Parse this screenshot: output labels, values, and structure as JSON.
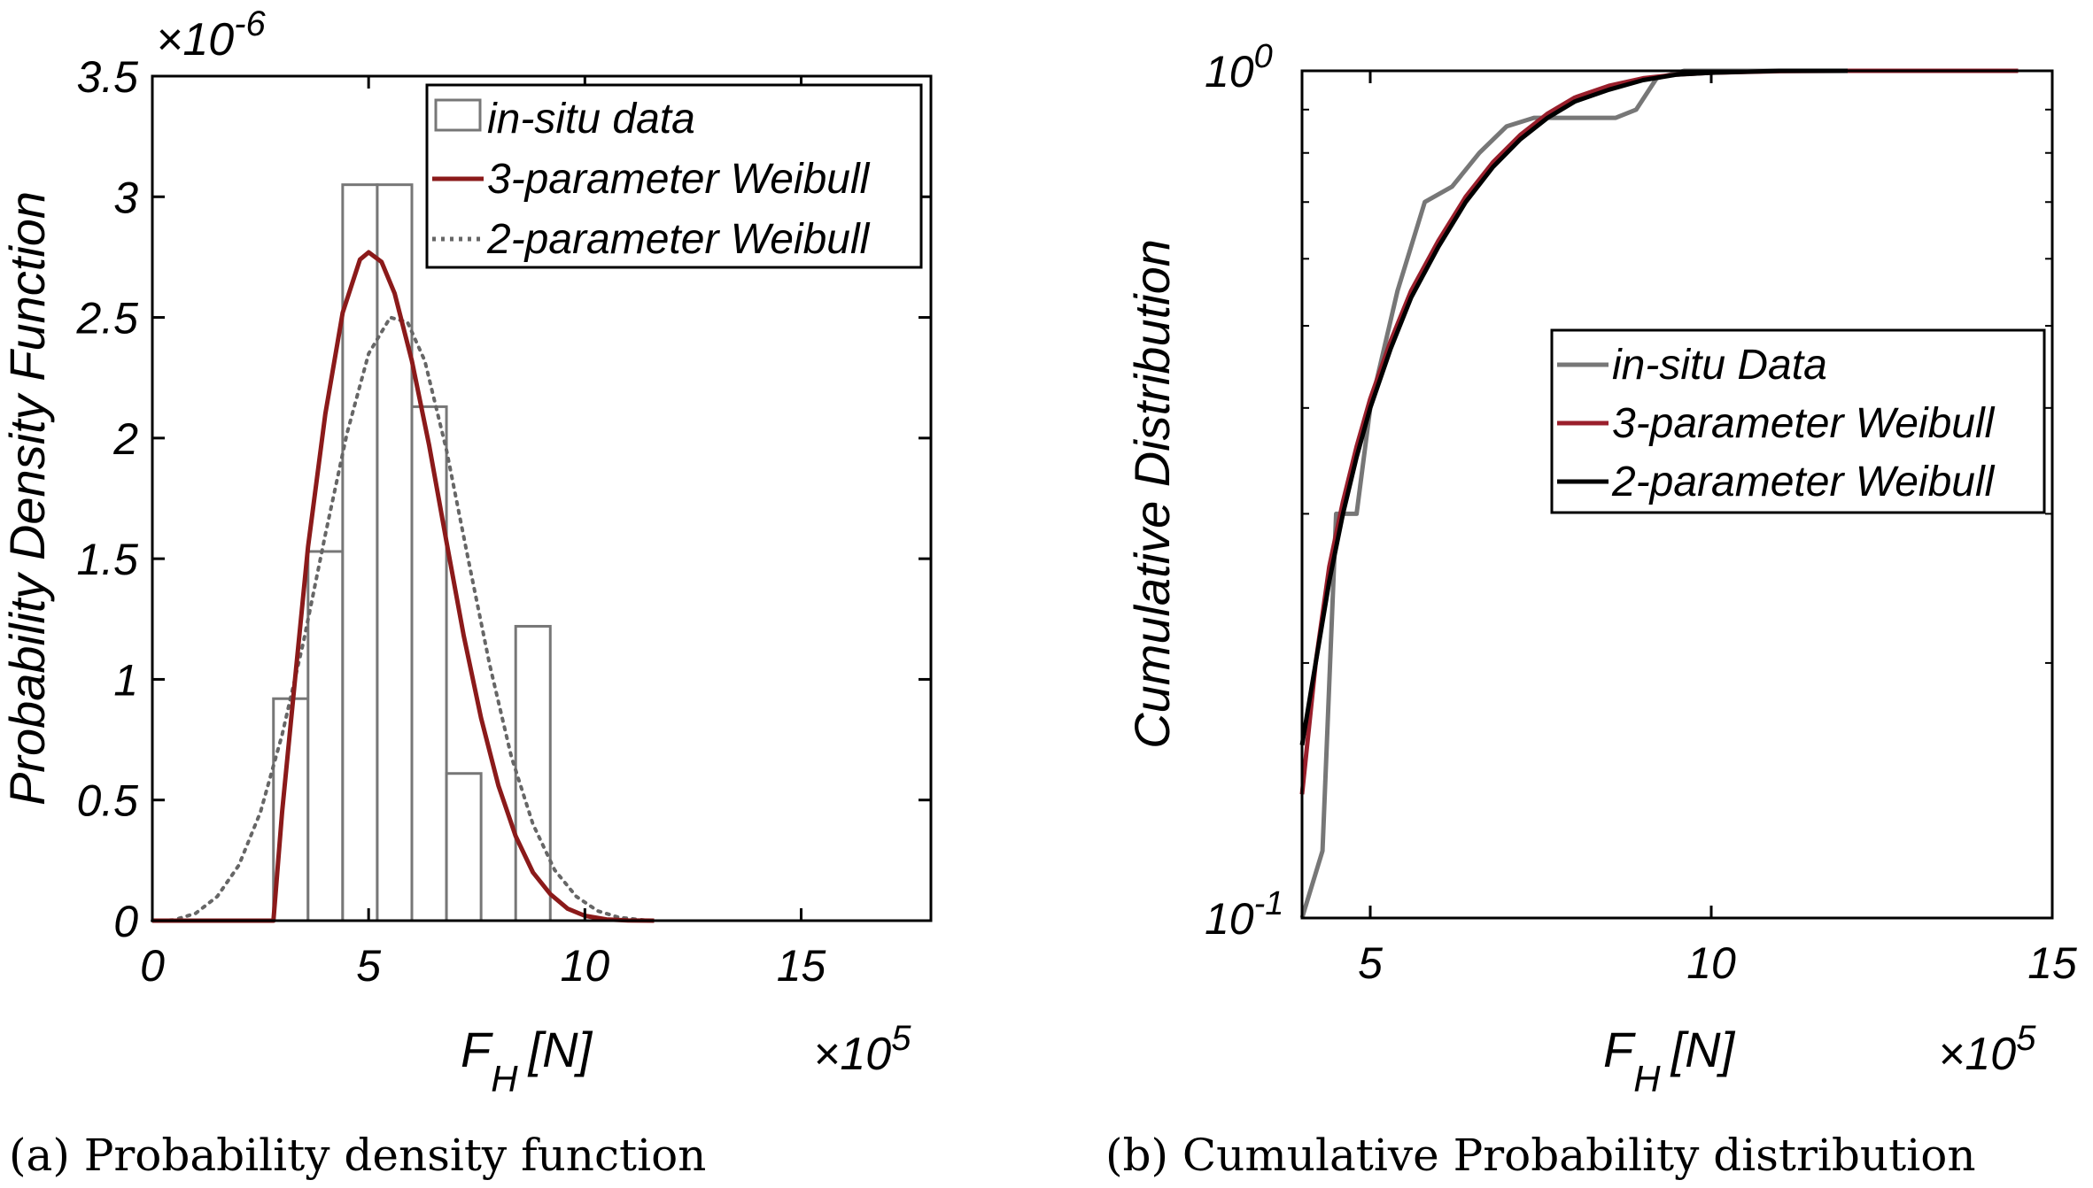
{
  "chart_data": [
    {
      "type": "bar",
      "panel": "a",
      "caption": "(a) Probability density function",
      "title": "",
      "xlabel": "F",
      "xlabel_sub": "H",
      "xlabel_unit": "[N]",
      "ylabel": "Probability Density Function",
      "x_multiplier": "×10",
      "x_multiplier_exp": "5",
      "y_multiplier": "×10",
      "y_multiplier_exp": "-6",
      "xlim": [
        0,
        18
      ],
      "ylim": [
        0,
        3.5
      ],
      "xticks": [
        0,
        5,
        10,
        15
      ],
      "xtick_labels": [
        "0",
        "5",
        "10",
        "15"
      ],
      "yticks": [
        0,
        0.5,
        1,
        1.5,
        2,
        2.5,
        3,
        3.5
      ],
      "ytick_labels": [
        "0",
        "0.5",
        "1",
        "1.5",
        "2",
        "2.5",
        "3",
        "3.5"
      ],
      "histogram": {
        "name": "in-situ data",
        "bin_edges": [
          2.8,
          3.6,
          4.4,
          5.2,
          6.0,
          6.8,
          7.6,
          8.4,
          9.2
        ],
        "values": [
          0.92,
          1.53,
          3.05,
          3.05,
          2.13,
          0.61,
          0,
          1.22
        ]
      },
      "series": [
        {
          "name": "3-parameter Weibull",
          "style": "solid",
          "color": "#8b1a1a",
          "x": [
            0,
            2.0,
            2.8,
            3.0,
            3.3,
            3.6,
            4.0,
            4.4,
            4.8,
            5.0,
            5.3,
            5.6,
            6.0,
            6.4,
            6.8,
            7.2,
            7.6,
            8.0,
            8.4,
            8.8,
            9.2,
            9.6,
            10.0,
            10.5,
            11.0,
            11.6
          ],
          "values": [
            0,
            0,
            0,
            0.45,
            1.0,
            1.55,
            2.1,
            2.52,
            2.74,
            2.77,
            2.73,
            2.6,
            2.32,
            1.97,
            1.57,
            1.18,
            0.84,
            0.56,
            0.35,
            0.2,
            0.11,
            0.05,
            0.02,
            0.005,
            0.001,
            0
          ]
        },
        {
          "name": "2-parameter Weibull",
          "style": "dotted",
          "color": "#666666",
          "x": [
            0,
            0.5,
            1.0,
            1.5,
            2.0,
            2.5,
            3.0,
            3.5,
            4.0,
            4.5,
            5.0,
            5.5,
            5.9,
            6.3,
            6.8,
            7.3,
            7.8,
            8.3,
            8.8,
            9.3,
            9.8,
            10.3,
            10.8,
            11.5
          ],
          "values": [
            0,
            0.003,
            0.03,
            0.1,
            0.23,
            0.45,
            0.77,
            1.16,
            1.6,
            2.02,
            2.35,
            2.5,
            2.48,
            2.32,
            1.95,
            1.5,
            1.06,
            0.68,
            0.4,
            0.21,
            0.1,
            0.04,
            0.013,
            0
          ]
        }
      ],
      "legend": {
        "position": "top-right",
        "entries": [
          "in-situ data",
          "3-parameter Weibull",
          "2-parameter Weibull"
        ]
      }
    },
    {
      "type": "line",
      "panel": "b",
      "caption": "(b) Cumulative Probability distribution",
      "title": "",
      "xlabel": "F",
      "xlabel_sub": "H",
      "xlabel_unit": "[N]",
      "ylabel": "Cumulative Distribution",
      "x_multiplier": "×10",
      "x_multiplier_exp": "5",
      "yscale": "log",
      "xlim": [
        4,
        15
      ],
      "ylim": [
        0.1,
        1
      ],
      "xticks": [
        5,
        10,
        15
      ],
      "xtick_labels": [
        "5",
        "10",
        "15"
      ],
      "yticks": [
        0.1,
        1
      ],
      "ytick_labels": [
        {
          "base": "10",
          "exp": "-1"
        },
        {
          "base": "10",
          "exp": "0"
        }
      ],
      "series": [
        {
          "name": "in-situ Data",
          "color": "#777777",
          "x": [
            4.0,
            4.3,
            4.5,
            4.8,
            5.0,
            5.4,
            5.8,
            6.2,
            6.6,
            7.0,
            7.4,
            7.8,
            8.2,
            8.6,
            8.9,
            9.2,
            9.6,
            10.0,
            12.0
          ],
          "values": [
            0.1,
            0.12,
            0.3,
            0.3,
            0.4,
            0.55,
            0.7,
            0.73,
            0.8,
            0.86,
            0.88,
            0.88,
            0.88,
            0.88,
            0.9,
            0.98,
            1.0,
            1.0,
            1.0
          ]
        },
        {
          "name": "3-parameter Weibull",
          "color": "#9a1f2c",
          "x": [
            4.0,
            4.2,
            4.4,
            4.6,
            4.8,
            5.0,
            5.3,
            5.6,
            6.0,
            6.4,
            6.8,
            7.2,
            7.6,
            8.0,
            8.5,
            9.0,
            9.5,
            10.0,
            11.0,
            12.0,
            13.0,
            14.0,
            14.5
          ],
          "values": [
            0.14,
            0.2,
            0.26,
            0.31,
            0.36,
            0.41,
            0.48,
            0.55,
            0.63,
            0.71,
            0.78,
            0.84,
            0.89,
            0.93,
            0.96,
            0.98,
            0.99,
            0.995,
            0.999,
            1.0,
            1.0,
            1.0,
            1.0
          ]
        },
        {
          "name": "2-parameter Weibull",
          "color": "#000000",
          "x": [
            4.0,
            4.2,
            4.4,
            4.6,
            4.8,
            5.0,
            5.3,
            5.6,
            6.0,
            6.4,
            6.8,
            7.2,
            7.6,
            8.0,
            8.5,
            9.0,
            9.5,
            10.0,
            11.0,
            12.0
          ],
          "values": [
            0.16,
            0.2,
            0.25,
            0.3,
            0.35,
            0.4,
            0.47,
            0.54,
            0.62,
            0.7,
            0.77,
            0.83,
            0.88,
            0.92,
            0.95,
            0.975,
            0.99,
            0.995,
            1.0,
            1.0
          ]
        }
      ],
      "legend": {
        "position": "center-right",
        "entries": [
          "in-situ Data",
          "3-parameter Weibull",
          "2-parameter Weibull"
        ]
      }
    }
  ]
}
